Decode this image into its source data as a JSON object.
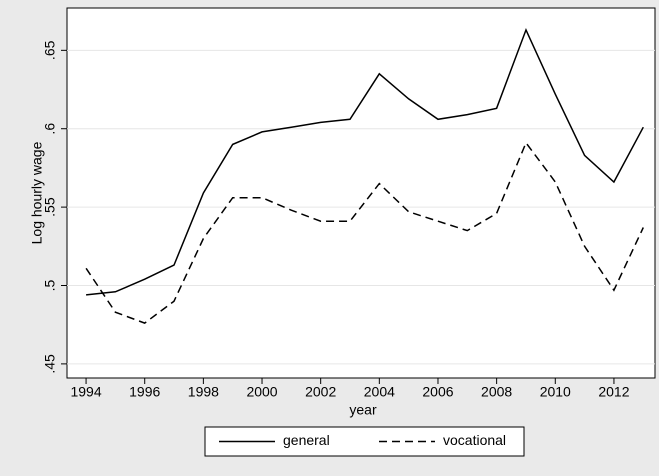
{
  "chart_data": {
    "type": "line",
    "x": [
      1994,
      1995,
      1996,
      1997,
      1998,
      1999,
      2000,
      2001,
      2002,
      2003,
      2004,
      2005,
      2006,
      2007,
      2008,
      2009,
      2010,
      2011,
      2012,
      2013
    ],
    "series": [
      {
        "name": "general",
        "color": "#000000",
        "dash": "solid",
        "values": [
          0.494,
          0.496,
          0.504,
          0.513,
          0.559,
          0.59,
          0.598,
          0.601,
          0.604,
          0.606,
          0.635,
          0.619,
          0.606,
          0.609,
          0.613,
          0.663,
          0.622,
          0.583,
          0.566,
          0.601
        ]
      },
      {
        "name": "vocational",
        "color": "#000000",
        "dash": "dashed",
        "values": [
          0.511,
          0.483,
          0.476,
          0.49,
          0.53,
          0.556,
          0.556,
          0.548,
          0.541,
          0.541,
          0.565,
          0.547,
          0.541,
          0.535,
          0.546,
          0.591,
          0.566,
          0.525,
          0.497,
          0.537
        ]
      }
    ],
    "xlabel": "year",
    "ylabel": "Log hourly wage",
    "xlim": [
      1993.35,
      2013.4
    ],
    "xticks": [
      1994,
      1996,
      1998,
      2000,
      2002,
      2004,
      2006,
      2008,
      2010,
      2012
    ],
    "ylim": [
      0.441,
      0.677
    ],
    "yticks": [
      {
        "value": 0.45,
        "label": ".45"
      },
      {
        "value": 0.5,
        "label": ".5"
      },
      {
        "value": 0.55,
        "label": ".55"
      },
      {
        "value": 0.6,
        "label": ".6"
      },
      {
        "value": 0.65,
        "label": ".65"
      }
    ],
    "grid": true,
    "legend": "bottom"
  }
}
